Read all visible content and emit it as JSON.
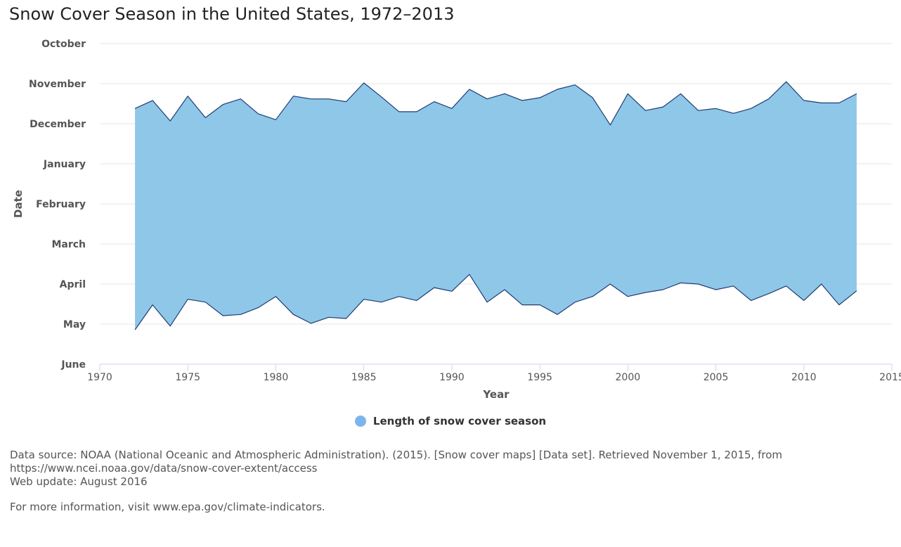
{
  "colors": {
    "fill": "#8ec7e8",
    "stroke": "#1f3c73",
    "grid": "#e6e6e6",
    "axis": "#ccd6eb",
    "legend_marker": "#7cb5ec"
  },
  "legend": {
    "label": "Length of snow cover season"
  },
  "footer": {
    "source": "Data source: NOAA (National Oceanic and Atmospheric Administration). (2015). [Snow cover maps] [Data set]. Retrieved November 1, 2015, from https://www.ncei.noaa.gov/data/snow-cover-extent/access",
    "update": "Web update: August 2016",
    "more_info": "For more information, visit www.epa.gov/climate-indicators."
  },
  "chart_data": {
    "type": "area",
    "title": "Snow Cover Season in the United States, 1972–2013",
    "xlabel": "Year",
    "ylabel": "Date",
    "xlim": [
      1970,
      2015
    ],
    "x_ticks": [
      1970,
      1975,
      1980,
      1985,
      1990,
      1995,
      2000,
      2005,
      2010,
      2015
    ],
    "y_ticks": [
      {
        "month": 0,
        "label": "October"
      },
      {
        "month": 1,
        "label": "November"
      },
      {
        "month": 2,
        "label": "December"
      },
      {
        "month": 3,
        "label": "January"
      },
      {
        "month": 4,
        "label": "February"
      },
      {
        "month": 5,
        "label": "March"
      },
      {
        "month": 6,
        "label": "April"
      },
      {
        "month": 7,
        "label": "May"
      },
      {
        "month": 8,
        "label": "June"
      }
    ],
    "y_unit": "months since October 1",
    "y_reversed": true,
    "grid": true,
    "legend_position": "bottom-center",
    "series": [
      {
        "name": "Length of snow cover season",
        "x": [
          1972,
          1973,
          1974,
          1975,
          1976,
          1977,
          1978,
          1979,
          1980,
          1981,
          1982,
          1983,
          1984,
          1985,
          1986,
          1987,
          1988,
          1989,
          1990,
          1991,
          1992,
          1993,
          1994,
          1995,
          1996,
          1997,
          1998,
          1999,
          2000,
          2001,
          2002,
          2003,
          2004,
          2005,
          2006,
          2007,
          2008,
          2009,
          2010,
          2011,
          2012,
          2013
        ],
        "start": [
          1.62,
          1.42,
          1.93,
          1.31,
          1.85,
          1.52,
          1.38,
          1.75,
          1.9,
          1.31,
          1.38,
          1.38,
          1.45,
          0.98,
          1.33,
          1.7,
          1.7,
          1.45,
          1.62,
          1.14,
          1.38,
          1.25,
          1.42,
          1.35,
          1.14,
          1.03,
          1.35,
          2.03,
          1.25,
          1.67,
          1.58,
          1.25,
          1.67,
          1.62,
          1.74,
          1.62,
          1.38,
          0.95,
          1.42,
          1.48,
          1.48,
          1.25
        ],
        "end": [
          7.14,
          6.52,
          7.05,
          6.38,
          6.45,
          6.79,
          6.76,
          6.59,
          6.31,
          6.76,
          6.98,
          6.83,
          6.86,
          6.38,
          6.45,
          6.31,
          6.41,
          6.09,
          6.18,
          5.76,
          6.45,
          6.14,
          6.52,
          6.52,
          6.76,
          6.45,
          6.31,
          6.0,
          6.31,
          6.21,
          6.14,
          5.97,
          6.0,
          6.14,
          6.05,
          6.41,
          6.24,
          6.05,
          6.41,
          6.0,
          6.52,
          6.17
        ]
      }
    ]
  }
}
